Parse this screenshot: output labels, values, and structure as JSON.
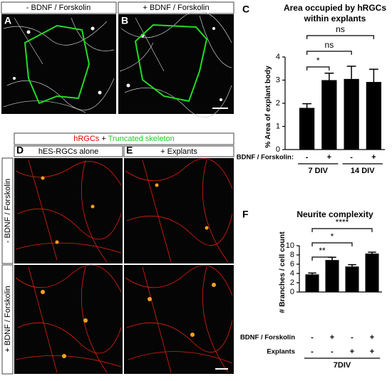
{
  "image_panels": [
    {
      "letter": "A",
      "label": "- BDNF / Forskolin"
    },
    {
      "letter": "B",
      "label": "+ BDNF / Forskolin"
    },
    {
      "letter": "D",
      "label": "hES-RGCs alone"
    },
    {
      "letter": "E",
      "label": "+ Explants"
    }
  ],
  "stain_legend": {
    "red": "hRGCs",
    "plus": "+",
    "green": "Truncated skeleton"
  },
  "row_labels": [
    "- BDNF / Forskolin",
    "+ BDNF / Forskolin"
  ],
  "chart_data": [
    {
      "type": "bar",
      "panel": "C",
      "title": [
        "Area occupied by hRGCs",
        "within explants"
      ],
      "y_label": "% Area of explant body",
      "values": [
        1.8,
        3.0,
        3.05,
        2.92
      ],
      "errors": [
        0.18,
        0.3,
        0.55,
        0.55
      ],
      "color": "#000000",
      "ylim": [
        0,
        4
      ],
      "yticks": [
        0,
        1,
        2,
        3,
        4
      ],
      "rows": [
        {
          "label": "BDNF / Forskolin:",
          "values": [
            "-",
            "+",
            "-",
            "+"
          ]
        }
      ],
      "groups": [
        "7 DIV",
        "14 DIV"
      ],
      "significance": [
        "*",
        "ns",
        "ns"
      ]
    },
    {
      "type": "bar",
      "panel": "F",
      "title": [
        "Neurite complexity"
      ],
      "y_label": "# Branches / cell count",
      "values": [
        3.8,
        6.9,
        5.5,
        8.3
      ],
      "errors": [
        0.3,
        0.6,
        0.4,
        0.3
      ],
      "color": "#000000",
      "ylim": [
        0,
        10
      ],
      "yticks": [
        0,
        2,
        4,
        6,
        8,
        10
      ],
      "rows": [
        {
          "label": "BDNF / Forskolin",
          "values": [
            "-",
            "+",
            "-",
            "+"
          ]
        },
        {
          "label": "Explants",
          "values": [
            "-",
            "-",
            "+",
            "+"
          ]
        }
      ],
      "groups": [
        "7DIV"
      ],
      "significance": [
        "**",
        "*",
        "****"
      ]
    }
  ]
}
